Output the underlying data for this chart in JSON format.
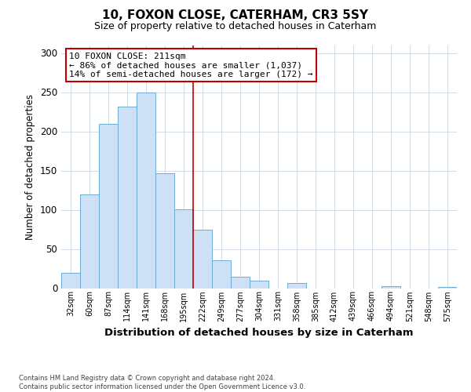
{
  "title": "10, FOXON CLOSE, CATERHAM, CR3 5SY",
  "subtitle": "Size of property relative to detached houses in Caterham",
  "xlabel": "Distribution of detached houses by size in Caterham",
  "ylabel": "Number of detached properties",
  "bar_labels": [
    "32sqm",
    "60sqm",
    "87sqm",
    "114sqm",
    "141sqm",
    "168sqm",
    "195sqm",
    "222sqm",
    "249sqm",
    "277sqm",
    "304sqm",
    "331sqm",
    "358sqm",
    "385sqm",
    "412sqm",
    "439sqm",
    "466sqm",
    "494sqm",
    "521sqm",
    "548sqm",
    "575sqm"
  ],
  "bar_values": [
    20,
    120,
    210,
    232,
    250,
    147,
    101,
    75,
    36,
    15,
    10,
    0,
    7,
    0,
    0,
    0,
    0,
    3,
    0,
    0,
    2
  ],
  "bar_color": "#cde0f5",
  "bar_edge_color": "#6baed6",
  "ylim": [
    0,
    310
  ],
  "yticks": [
    0,
    50,
    100,
    150,
    200,
    250,
    300
  ],
  "annotation_line1": "10 FOXON CLOSE: 211sqm",
  "annotation_line2": "← 86% of detached houses are smaller (1,037)",
  "annotation_line3": "14% of semi-detached houses are larger (172) →",
  "annotation_box_color": "#ffffff",
  "annotation_box_edge_color": "#c00000",
  "vline_color": "#c00000",
  "vline_x_index": 7.0,
  "footer_line1": "Contains HM Land Registry data © Crown copyright and database right 2024.",
  "footer_line2": "Contains public sector information licensed under the Open Government Licence v3.0.",
  "bg_color": "#ffffff",
  "grid_color": "#d4dce8"
}
